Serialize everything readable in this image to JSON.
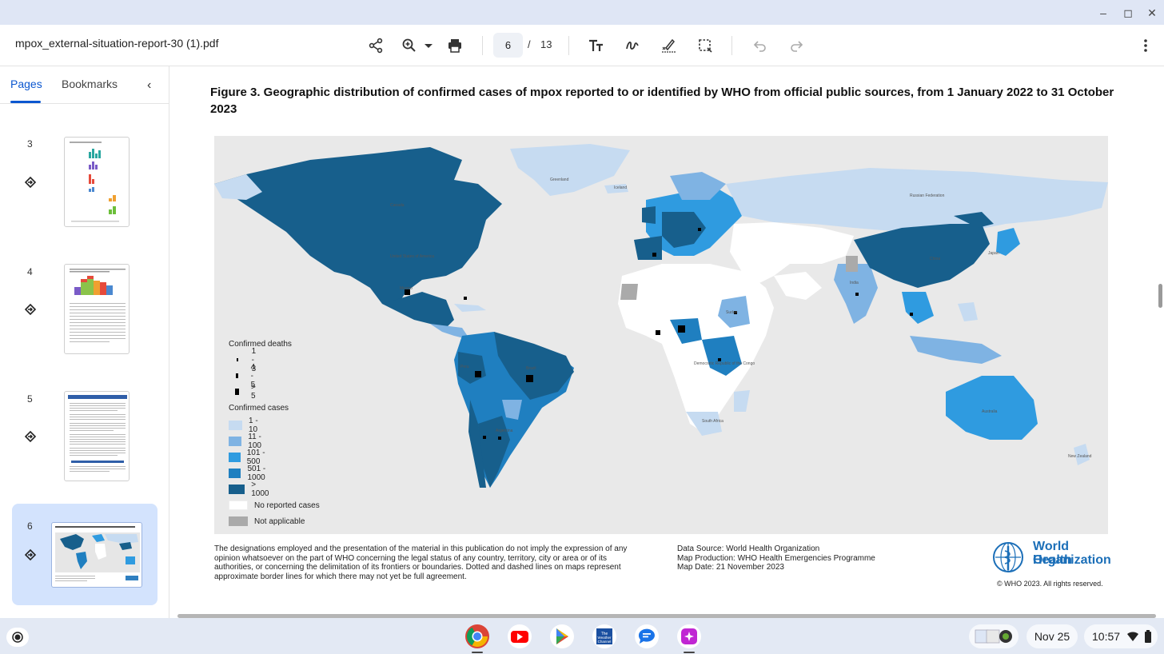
{
  "window": {
    "min_icon": "minimize-icon",
    "max_icon": "restore-icon",
    "close_icon": "close-icon"
  },
  "toolbar": {
    "doc_title": "mpox_external-situation-report-30 (1).pdf",
    "current_page": "6",
    "page_sep": "/",
    "total_pages": "13"
  },
  "sidebar": {
    "tab_pages": "Pages",
    "tab_bookmarks": "Bookmarks",
    "thumbs": [
      {
        "label": "3"
      },
      {
        "label": "4"
      },
      {
        "label": "5"
      },
      {
        "label": "6"
      }
    ]
  },
  "figure": {
    "title": "Figure 3. Geographic distribution of confirmed cases of mpox reported to or identified by WHO from official public sources, from 1 January 2022 to 31 October 2023",
    "legend_deaths_title": "Confirmed deaths",
    "deaths": [
      "1 - 3",
      "4 - 5",
      "> 5"
    ],
    "legend_cases_title": "Confirmed cases",
    "cases": [
      {
        "label": "1 - 10",
        "color": "#c6dbf1"
      },
      {
        "label": "11 - 100",
        "color": "#7fb3e3"
      },
      {
        "label": "101 - 500",
        "color": "#2f9be0"
      },
      {
        "label": "501 - 1000",
        "color": "#1f7fc0"
      },
      {
        "label": "> 1000",
        "color": "#175f8c"
      },
      {
        "label": "No reported cases",
        "color": "#ffffff"
      },
      {
        "label": "Not applicable",
        "color": "#aaaaaa"
      }
    ],
    "map_labels": [
      "Greenland",
      "Canada",
      "United States of America",
      "Russian Federation",
      "China",
      "India",
      "Brazil",
      "Australia",
      "Iceland",
      "New Zealand",
      "Japan",
      "Mexico",
      "Peru",
      "Argentina",
      "Sudan",
      "Democratic Republic of the Congo",
      "South Africa"
    ],
    "disclaimer": "The designations employed and the presentation of the material in this publication do not imply the expression of any opinion whatsoever on the part of WHO concerning the legal status of any country, territory, city or area or of its authorities, or concerning the delimitation of its frontiers or boundaries. Dotted and dashed lines on maps represent approximate border lines for which there may not yet be full agreement.",
    "data_source": "Data Source: World Health Organization",
    "map_production": "Map Production: WHO Health Emergencies Programme",
    "map_date": "Map Date: 21 November 2023",
    "who_name_1": "World Health",
    "who_name_2": "Organization",
    "copyright": "© WHO 2023. All rights reserved."
  },
  "shelf": {
    "apps": [
      "chrome-icon",
      "youtube-icon",
      "play-store-icon",
      "weather-channel-icon",
      "messages-icon",
      "gallery-icon"
    ],
    "date": "Nov 25",
    "time": "10:57"
  }
}
